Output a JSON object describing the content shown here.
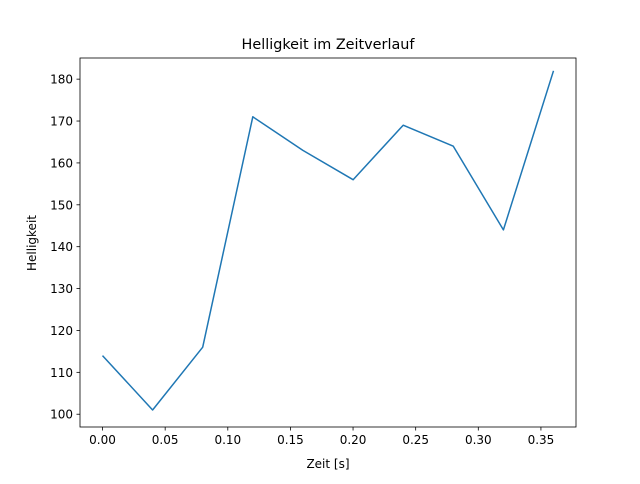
{
  "chart_data": {
    "type": "line",
    "title": "Helligkeit im Zeitverlauf",
    "xlabel": "Zeit [s]",
    "ylabel": "Helligkeit",
    "x": [
      0.0,
      0.04,
      0.08,
      0.12,
      0.16,
      0.2,
      0.24,
      0.28,
      0.32,
      0.36
    ],
    "series": [
      {
        "name": "Helligkeit",
        "color": "#1f77b4",
        "values": [
          114,
          101,
          116,
          171,
          163,
          156,
          169,
          164,
          144,
          182
        ]
      }
    ],
    "xlim": [
      -0.018,
      0.378
    ],
    "ylim": [
      96.95,
      185.05
    ],
    "xticks": [
      0.0,
      0.05,
      0.1,
      0.15,
      0.2,
      0.25,
      0.3,
      0.35
    ],
    "xtick_labels": [
      "0.00",
      "0.05",
      "0.10",
      "0.15",
      "0.20",
      "0.25",
      "0.30",
      "0.35"
    ],
    "yticks": [
      100,
      110,
      120,
      130,
      140,
      150,
      160,
      170,
      180
    ],
    "ytick_labels": [
      "100",
      "110",
      "120",
      "130",
      "140",
      "150",
      "160",
      "170",
      "180"
    ],
    "grid": false
  }
}
